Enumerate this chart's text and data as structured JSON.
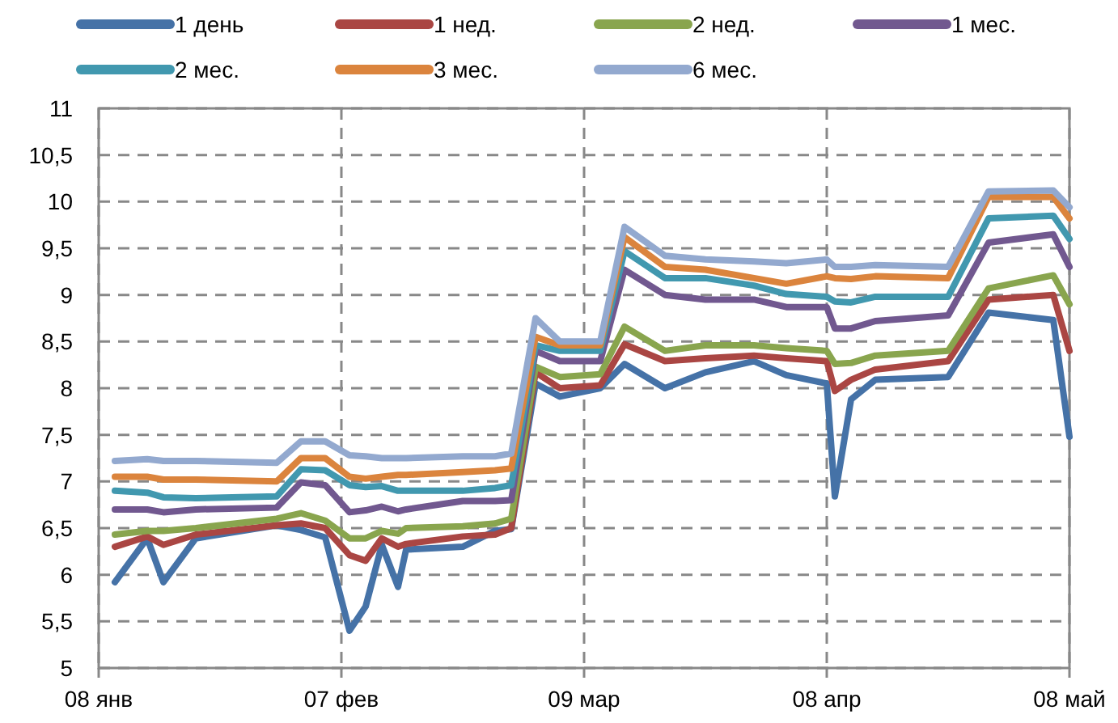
{
  "chart_data": {
    "type": "line",
    "legend": "top",
    "grid": true,
    "line_style": "solid",
    "marker": "none",
    "x": [
      "--01-10",
      "--01-14",
      "--01-16",
      "--01-20",
      "--01-30",
      "--02-02",
      "--02-05",
      "--02-08",
      "--02-10",
      "--02-12",
      "--02-14",
      "--02-15",
      "--02-22",
      "--02-26",
      "--02-28",
      "--03-03",
      "--03-06",
      "--03-11",
      "--03-14",
      "--03-19",
      "--03-24",
      "--03-30",
      "--04-03",
      "--04-08",
      "--04-09",
      "--04-11",
      "--04-14",
      "--04-23",
      "--04-28",
      "--05-06",
      "--05-08"
    ],
    "xlim": [
      "--01-08",
      "--05-08"
    ],
    "xticks": [
      {
        "value": "--01-08",
        "label": "08 янв"
      },
      {
        "value": "--02-07",
        "label": "07 фев"
      },
      {
        "value": "--03-09",
        "label": "09 мар"
      },
      {
        "value": "--04-08",
        "label": "08 апр"
      },
      {
        "value": "--05-08",
        "label": "08 май"
      }
    ],
    "ylim": [
      5,
      11
    ],
    "yticks": [
      5,
      {
        "value": 5.5,
        "label": "5,5"
      },
      6,
      {
        "value": 6.5,
        "label": "6,5"
      },
      7,
      {
        "value": 7.5,
        "label": "7,5"
      },
      8,
      {
        "value": 8.5,
        "label": "8,5"
      },
      9,
      {
        "value": 9.5,
        "label": "9,5"
      },
      10,
      {
        "value": 10.5,
        "label": "10,5"
      },
      11
    ],
    "series": [
      {
        "name": "1 день",
        "color": "#4572a7",
        "values": [
          5.92,
          6.39,
          5.92,
          6.39,
          6.53,
          6.48,
          6.4,
          5.4,
          5.66,
          6.32,
          5.87,
          6.27,
          6.3,
          6.47,
          6.49,
          8.05,
          7.91,
          8.0,
          8.26,
          8.0,
          8.17,
          8.29,
          8.14,
          8.05,
          6.84,
          7.88,
          8.09,
          8.12,
          8.81,
          8.73,
          7.48
        ]
      },
      {
        "name": "1 нед.",
        "color": "#aa4643",
        "values": [
          6.3,
          6.41,
          6.32,
          6.43,
          6.53,
          6.55,
          6.5,
          6.21,
          6.15,
          6.39,
          6.3,
          6.33,
          6.41,
          6.43,
          6.5,
          8.17,
          8.0,
          8.03,
          8.47,
          8.29,
          8.32,
          8.35,
          8.32,
          8.29,
          7.97,
          8.09,
          8.2,
          8.29,
          8.95,
          9.0,
          8.4
        ]
      },
      {
        "name": "2 нед.",
        "color": "#89a54e",
        "values": [
          6.43,
          6.47,
          6.47,
          6.5,
          6.6,
          6.66,
          6.58,
          6.39,
          6.39,
          6.47,
          6.44,
          6.5,
          6.52,
          6.55,
          6.6,
          8.23,
          8.12,
          8.15,
          8.66,
          8.4,
          8.46,
          8.46,
          8.43,
          8.4,
          8.26,
          8.27,
          8.35,
          8.4,
          9.07,
          9.21,
          8.9
        ]
      },
      {
        "name": "1 мес.",
        "color": "#71588f",
        "values": [
          6.7,
          6.7,
          6.67,
          6.7,
          6.72,
          6.99,
          6.96,
          6.67,
          6.69,
          6.73,
          6.68,
          6.7,
          6.79,
          6.79,
          6.8,
          8.4,
          8.29,
          8.29,
          9.27,
          9.0,
          8.95,
          8.95,
          8.87,
          8.87,
          8.64,
          8.64,
          8.72,
          8.78,
          9.56,
          9.65,
          9.3
        ]
      },
      {
        "name": "2 мес.",
        "color": "#4198af",
        "values": [
          6.9,
          6.88,
          6.83,
          6.82,
          6.84,
          7.13,
          7.12,
          6.96,
          6.94,
          6.95,
          6.9,
          6.9,
          6.9,
          6.93,
          6.96,
          8.46,
          8.4,
          8.4,
          9.47,
          9.18,
          9.18,
          9.1,
          9.01,
          8.98,
          8.93,
          8.92,
          8.98,
          8.98,
          9.82,
          9.85,
          9.6
        ]
      },
      {
        "name": "3 мес.",
        "color": "#db843d",
        "values": [
          7.05,
          7.05,
          7.02,
          7.02,
          7.0,
          7.25,
          7.25,
          7.05,
          7.03,
          7.05,
          7.07,
          7.07,
          7.1,
          7.12,
          7.14,
          8.55,
          8.46,
          8.46,
          9.62,
          9.3,
          9.27,
          9.18,
          9.12,
          9.2,
          9.18,
          9.17,
          9.2,
          9.18,
          10.05,
          10.05,
          9.82
        ]
      },
      {
        "name": "6 мес.",
        "color": "#93a9cf",
        "values": [
          7.22,
          7.24,
          7.22,
          7.22,
          7.2,
          7.43,
          7.43,
          7.28,
          7.27,
          7.25,
          7.25,
          7.25,
          7.27,
          7.27,
          7.3,
          8.75,
          8.5,
          8.5,
          9.73,
          9.42,
          9.38,
          9.36,
          9.34,
          9.38,
          9.3,
          9.3,
          9.32,
          9.3,
          10.11,
          10.12,
          9.94
        ]
      }
    ]
  }
}
